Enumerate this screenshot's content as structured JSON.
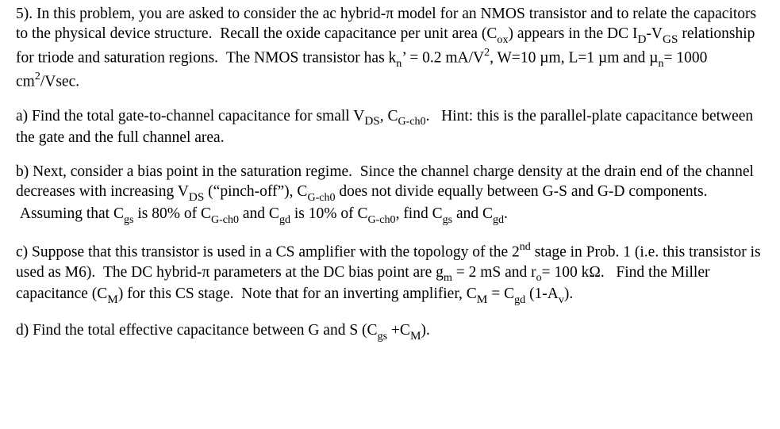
{
  "problem_number": "5).",
  "intro": {
    "s1": "In this problem, you are asked to consider the ac hybrid-π model for an NMOS transistor and to relate the capacitors to the physical device structure.",
    "s2": "Recall the oxide capacitance per unit area (C",
    "cox_sub": "ox",
    "s3": ") appears in the DC I",
    "id_sub": "D",
    "s4": "-V",
    "vgs_sub": "GS",
    "s5": " relationship for triode and saturation regions.",
    "s6": "The NMOS transistor has k",
    "kn_sub": "n",
    "kn_prime": "’",
    "s7": " = 0.2 mA/V",
    "sq": "2",
    "s8": ", W=10 µm, L=1 µm and µ",
    "mun_sub": "n",
    "s9": "= 1000 cm",
    "s10": "/Vsec."
  },
  "a": {
    "label": "a)",
    "s1": "Find the total gate-to-channel capacitance for small V",
    "vds_sub": "DS",
    "s2": ", C",
    "cg_sub": "G-ch0",
    "s3": ".",
    "hint": "Hint: this is the parallel-plate capacitance between the gate and the full channel area."
  },
  "b": {
    "label": "b)",
    "s1": "Next, consider a bias point in the saturation regime.",
    "s2": "Since the channel charge density at the drain end of the channel decreases with increasing V",
    "vds_sub": "DS",
    "s3": " (“pinch-off”), C",
    "cg_sub": "G-ch0",
    "s4": " does not divide equally between G-S and G-D components.",
    "s5": "Assuming that C",
    "cgs_sub": "gs",
    "s6": " is 80% of C",
    "s7": " and C",
    "cgd_sub": "gd",
    "s8": " is 10% of C",
    "s9": ", find C",
    "s10": " and C",
    "s11": "."
  },
  "c": {
    "label": "c)",
    "s1": "Suppose that this transistor is used in a CS amplifier with the topology of the 2",
    "nd": "nd",
    "s2": " stage in Prob. 1 (i.e. this transistor is used as M6).",
    "s3": "The DC hybrid-π parameters at the DC bias point are g",
    "gm_sub": "m",
    "s4": " = 2 mS and r",
    "ro_sub": "o",
    "s5": "= 100 kΩ.",
    "s6": "Find the Miller capacitance (C",
    "cm_sub": "M",
    "s7": ") for this CS stage.",
    "s8": "Note that for an inverting amplifier, C",
    "s9": " = C",
    "cgd_sub": "gd",
    "s10": " (1-A",
    "av_sub": "v",
    "s11": ")."
  },
  "d": {
    "label": "d)",
    "s1": "Find the total effective capacitance between G and S (C",
    "cgs_sub": "gs",
    "s2": " +C",
    "cm_sub": "M",
    "s3": ")."
  }
}
